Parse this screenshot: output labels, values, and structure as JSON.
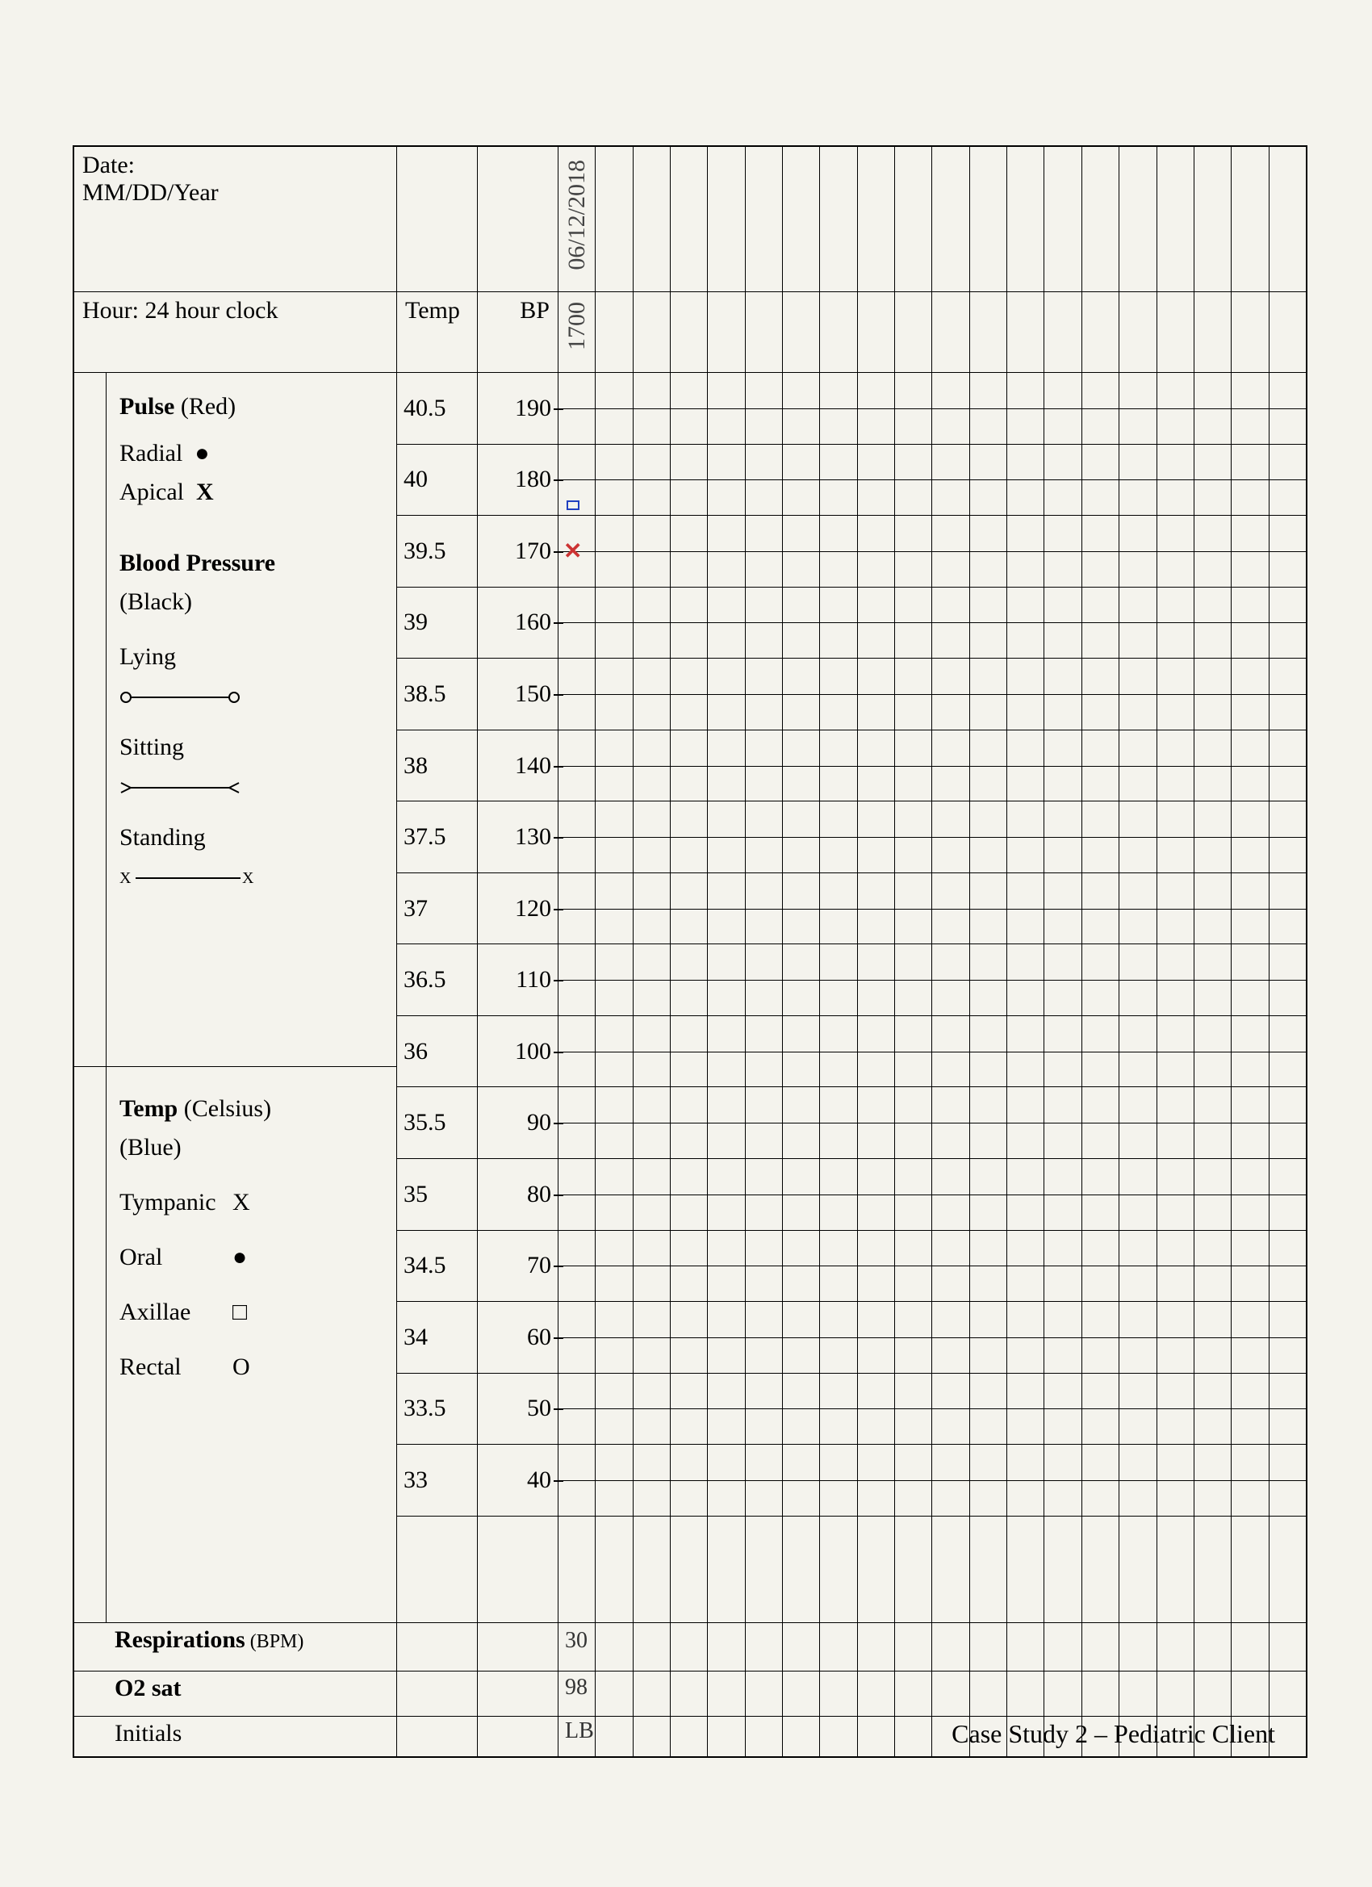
{
  "header": {
    "date_label": "Date:\nMM/DD/Year",
    "hour_label": "Hour:  24 hour clock",
    "temp_hdr": "Temp",
    "bp_hdr": "BP",
    "date_entry": "06/12/2018",
    "hour_entry": "1700"
  },
  "legend_pulse": {
    "title": "Pulse",
    "title_note": " (Red)",
    "radial": "Radial",
    "apical": "Apical"
  },
  "legend_bp": {
    "title": "Blood Pressure",
    "title_note": "(Black)",
    "lying": "Lying",
    "sitting": "Sitting",
    "standing": "Standing"
  },
  "legend_temp": {
    "title": "Temp",
    "title_note": " (Celsius)",
    "sub": "(Blue)",
    "tympanic": "Tympanic",
    "oral": "Oral",
    "axillae": "Axillae",
    "rectal": "Rectal",
    "sym_tympanic": "X",
    "sym_oral": "●",
    "sym_axillae": "□",
    "sym_rectal": "O"
  },
  "scale": {
    "temp_values": [
      "40.5",
      "40",
      "39.5",
      "39",
      "38.5",
      "38",
      "37.5",
      "37",
      "36.5",
      "36",
      "35.5",
      "35",
      "34.5",
      "34",
      "33.5",
      "33"
    ],
    "bp_values": [
      "190",
      "180",
      "170",
      "160",
      "150",
      "140",
      "130",
      "120",
      "110",
      "100",
      "90",
      "80",
      "70",
      "60",
      "50",
      "40"
    ]
  },
  "grid": {
    "num_cols": 20
  },
  "plotted": {
    "apical_x_row": 2,
    "temp_square_row": 1
  },
  "bottom": {
    "resp_label": "Respirations",
    "resp_note": " (BPM)",
    "o2_label": "O2 sat",
    "initials_label": "Initials",
    "resp_val": "30",
    "o2_val": "98",
    "initials_val": "LB"
  },
  "footer": "Case Study 2 – Pediatric Client",
  "style": {
    "bg": "#f4f3ed",
    "border": "#000000",
    "red": "#cc3333",
    "blue": "#2040c0",
    "font": "Times New Roman",
    "hand_font": "Comic Sans MS",
    "base_fontsize": 30
  }
}
